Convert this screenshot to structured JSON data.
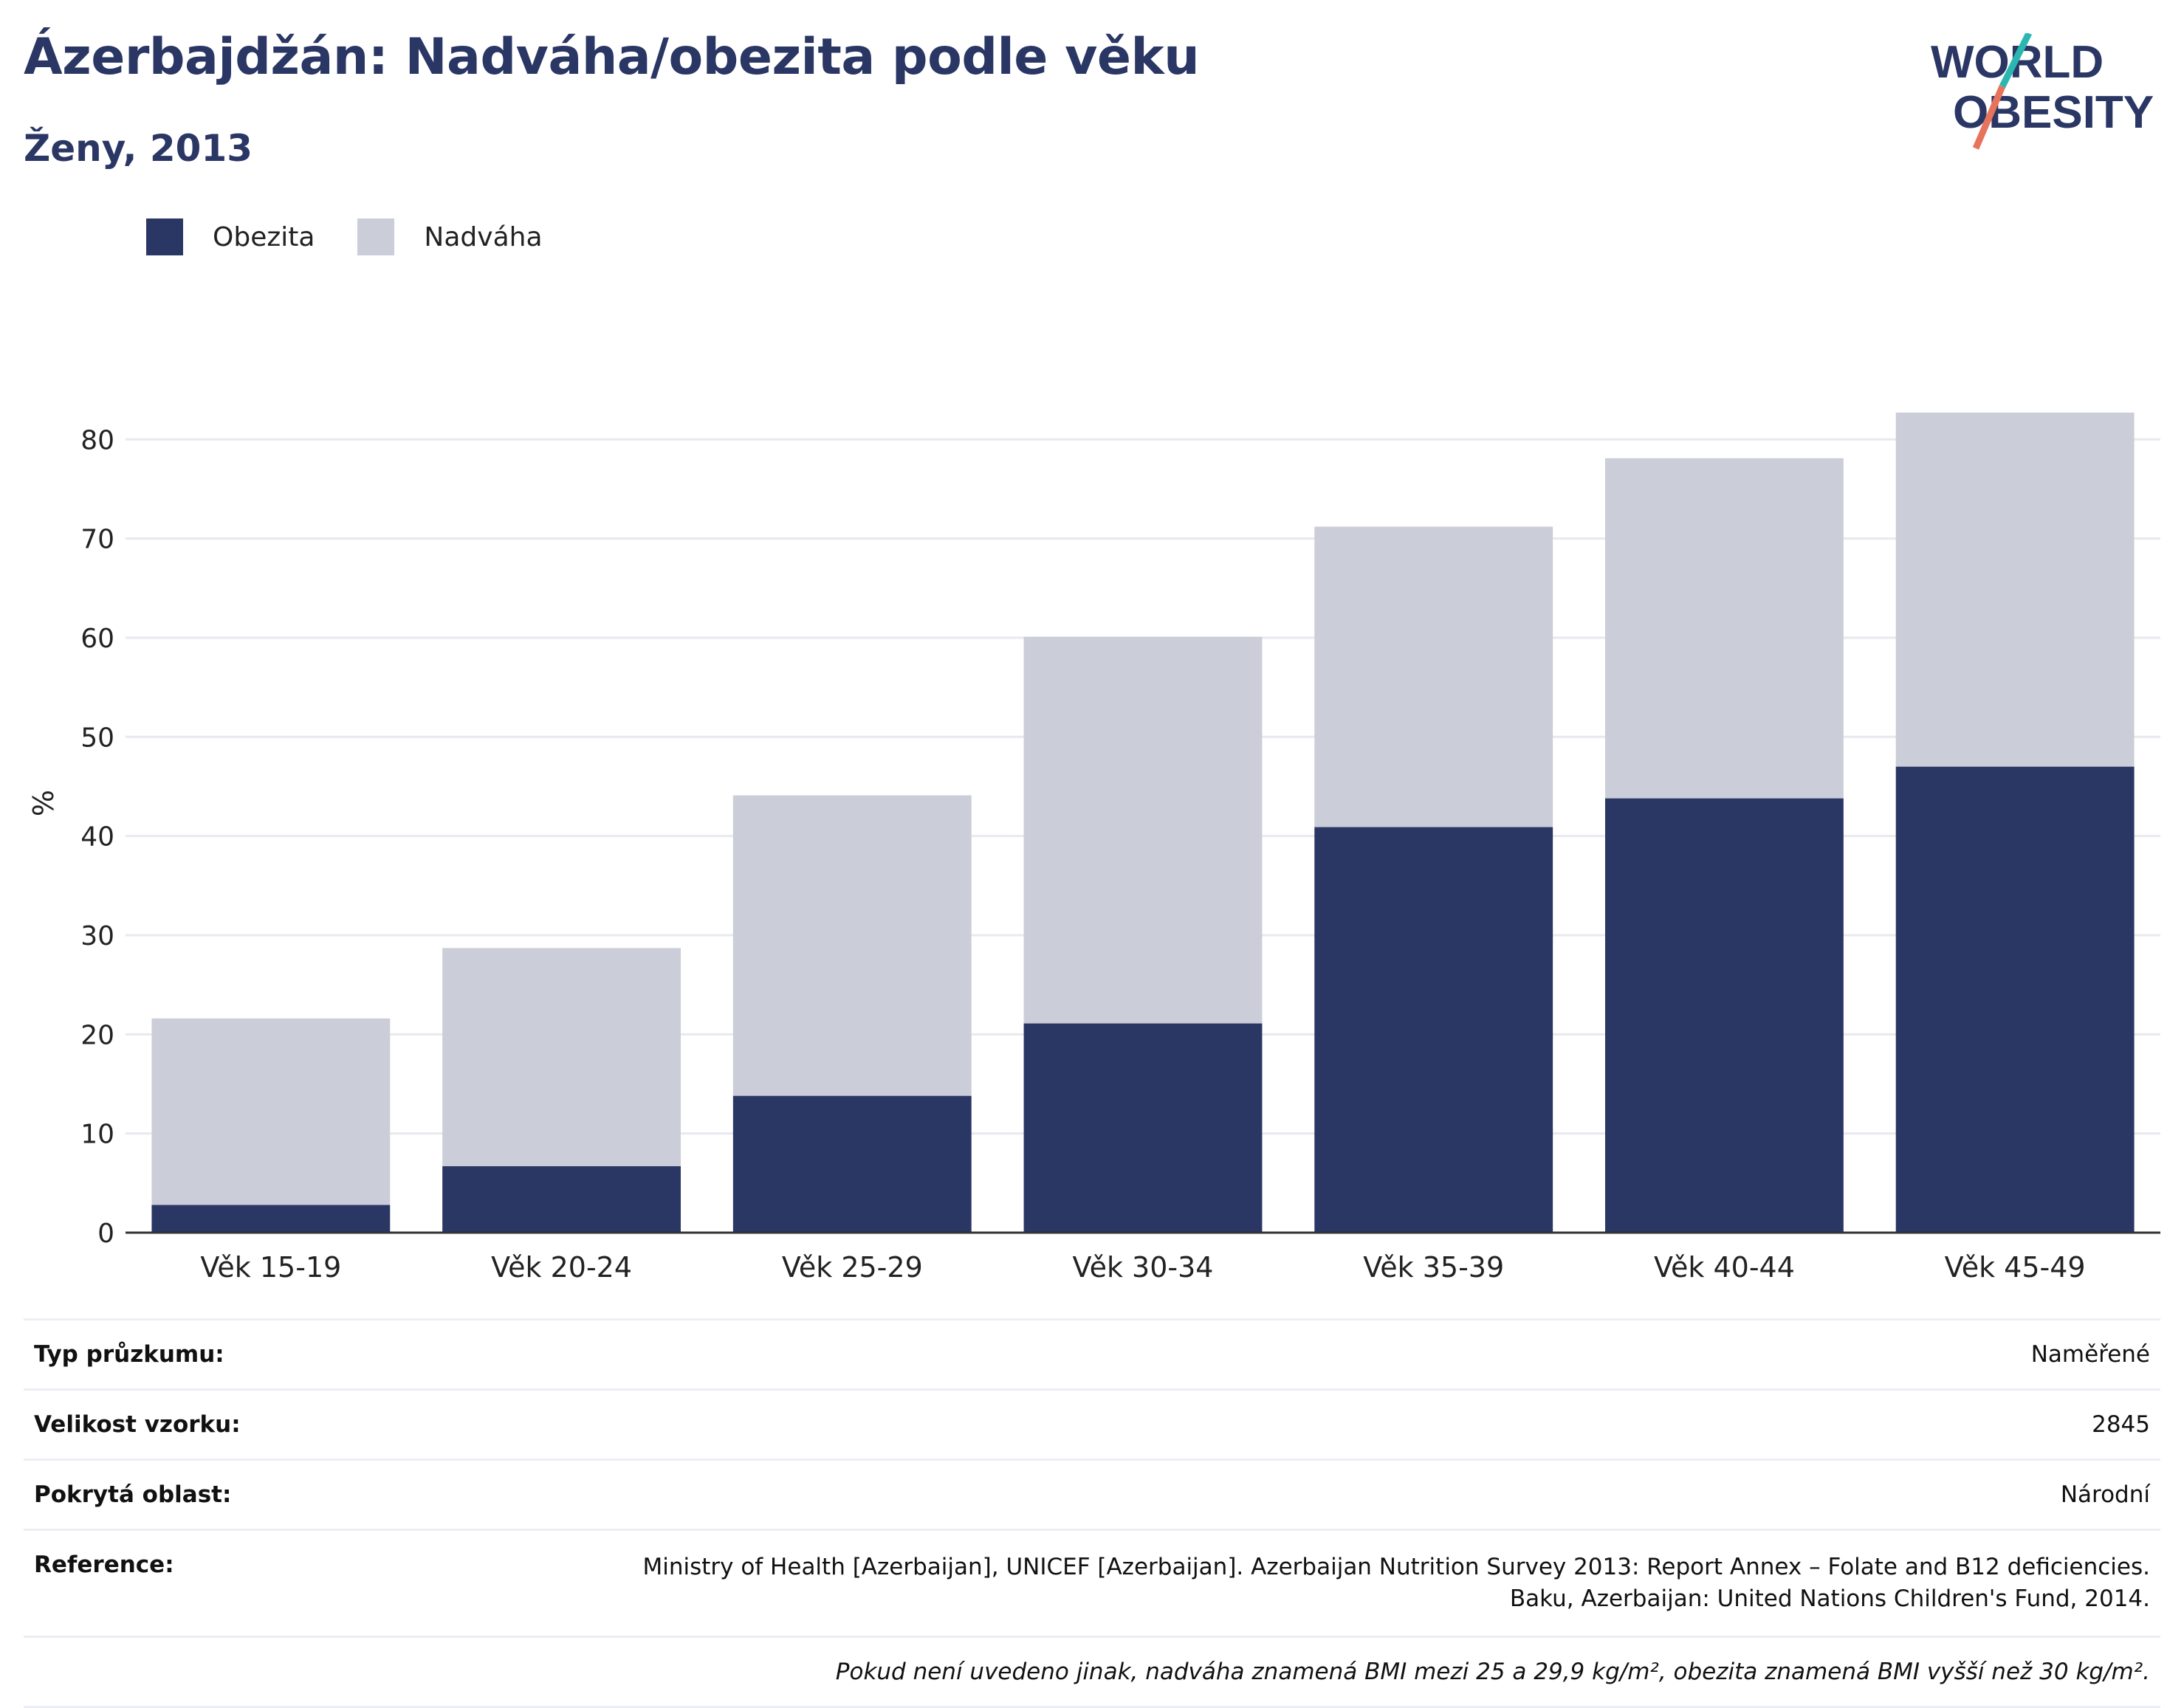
{
  "header": {
    "title": "Ázerbajdžán: Nadváha/obezita podle věku",
    "subtitle": "Ženy, 2013"
  },
  "logo": {
    "line1": "WORLD",
    "line2": "OBESITY"
  },
  "colors": {
    "obesity": "#2a3664",
    "overweight": "#cbcdd8",
    "title": "#2a3664",
    "logo_teal": "#2bb6b1",
    "logo_coral": "#e8735c"
  },
  "legend": [
    {
      "label": "Obezita",
      "color": "#2a3664"
    },
    {
      "label": "Nadváha",
      "color": "#cbcdd8"
    }
  ],
  "chart_data": {
    "type": "bar",
    "stacked": true,
    "categories": [
      "Věk 15-19",
      "Věk 20-24",
      "Věk 25-29",
      "Věk 30-34",
      "Věk 35-39",
      "Věk 40-44",
      "Věk 45-49"
    ],
    "series": [
      {
        "name": "Obezita",
        "values": [
          2.8,
          6.7,
          13.8,
          21.1,
          40.9,
          43.8,
          47.0
        ]
      },
      {
        "name": "Nadváha",
        "values": [
          18.8,
          22.0,
          30.3,
          39.0,
          30.3,
          34.3,
          35.7
        ]
      }
    ],
    "ylabel": "%",
    "xlabel": "",
    "ylim": [
      0,
      82.7
    ],
    "yticks": [
      0,
      10,
      20,
      30,
      40,
      50,
      60,
      70,
      80
    ],
    "grid": true,
    "legend_position": "top-left"
  },
  "info": {
    "rows": [
      {
        "label": "Typ průzkumu:",
        "value": "Naměřené"
      },
      {
        "label": "Velikost vzorku:",
        "value": "2845"
      },
      {
        "label": "Pokrytá oblast:",
        "value": "Národní"
      }
    ],
    "reference_label": "Reference:",
    "reference_line1": "Ministry of Health [Azerbaijan], UNICEF [Azerbaijan]. Azerbaijan Nutrition Survey 2013: Report Annex – Folate and B12 deficiencies.",
    "reference_line2": "Baku, Azerbaijan: United Nations Children's Fund, 2014.",
    "note": "Pokud není uvedeno jinak, nadváha znamená BMI mezi 25 a 29,9 kg/m², obezita znamená BMI vyšší než 30 kg/m²."
  }
}
